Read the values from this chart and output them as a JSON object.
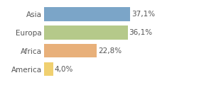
{
  "categories": [
    "America",
    "Africa",
    "Europa",
    "Asia"
  ],
  "values": [
    4.0,
    22.8,
    36.1,
    37.1
  ],
  "labels": [
    "4,0%",
    "22,8%",
    "36,1%",
    "37,1%"
  ],
  "bar_colors": [
    "#f0d070",
    "#e8b07a",
    "#b5c98a",
    "#7ba5c8"
  ],
  "background_color": "#ffffff",
  "xlim": [
    0,
    48
  ],
  "bar_height": 0.75,
  "label_fontsize": 7.5,
  "tick_fontsize": 7.5,
  "label_color": "#555555",
  "tick_color": "#555555"
}
